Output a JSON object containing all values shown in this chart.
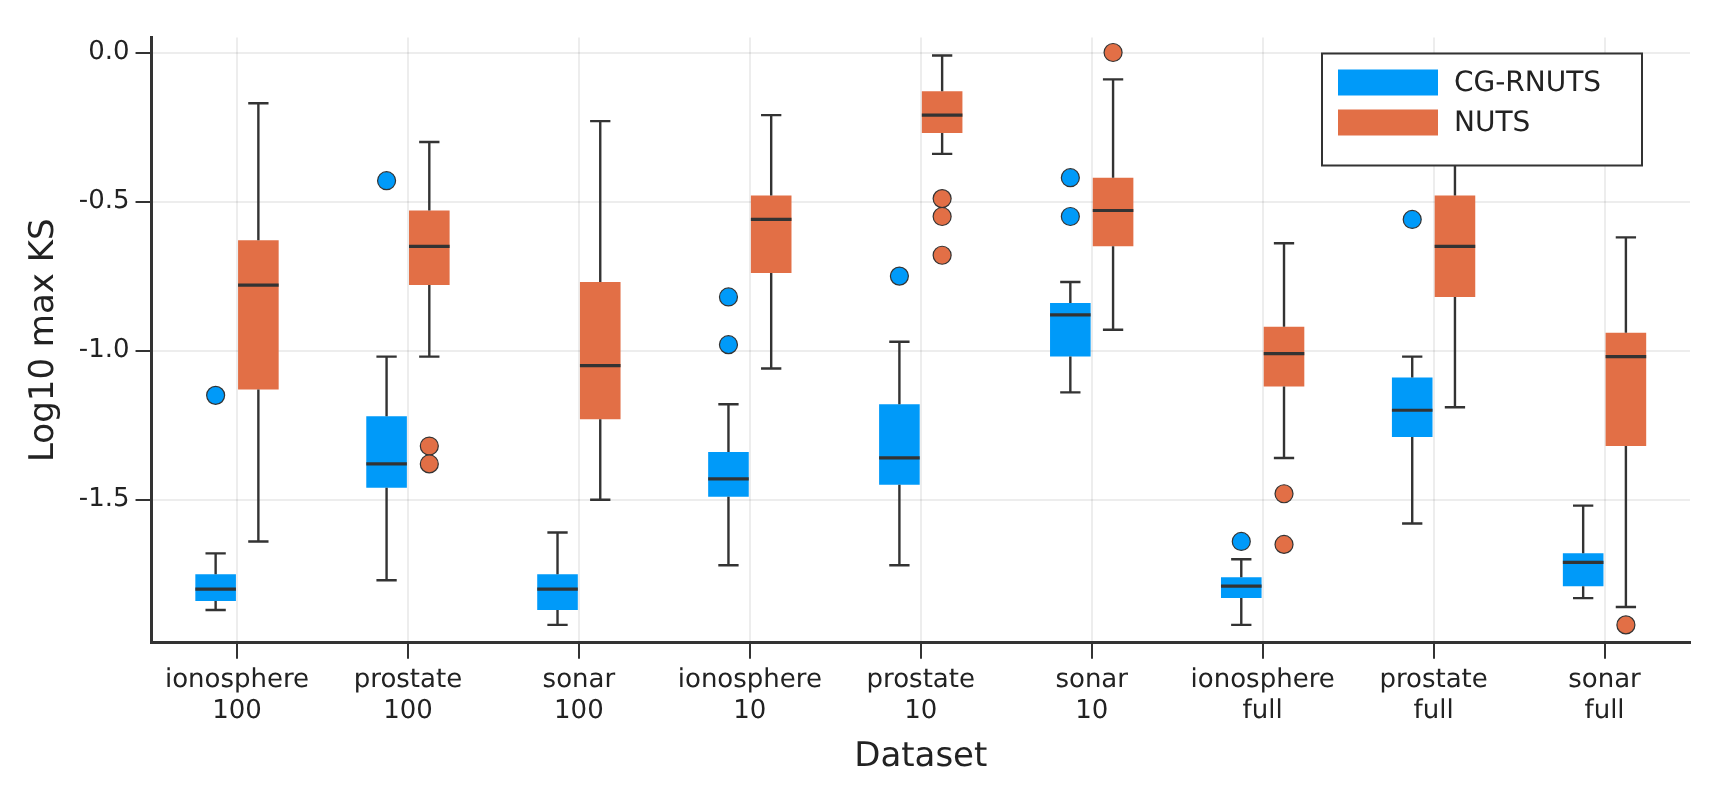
{
  "chart_data": {
    "type": "box",
    "xlabel": "Dataset",
    "ylabel": "Log10 max KS",
    "categories": [
      "ionosphere 100",
      "prostate 100",
      "sonar 100",
      "ionosphere 10",
      "prostate 10",
      "sonar 10",
      "ionosphere full",
      "prostate full",
      "sonar full"
    ],
    "ylim": [
      -1.98,
      0.05
    ],
    "yticks": [
      {
        "value": -1.5,
        "label": "-1.5"
      },
      {
        "value": -1,
        "label": "-1.0"
      },
      {
        "value": -0.5,
        "label": "-0.5"
      },
      {
        "value": 0,
        "label": "0.0"
      }
    ],
    "grid": true,
    "legend": "top right",
    "series": [
      {
        "name": "CG-RNUTS",
        "color": "#009af9",
        "boxes": [
          {
            "low": -1.87,
            "q1": -1.84,
            "median": -1.8,
            "q3": -1.75,
            "high": -1.68,
            "outliers": [
              -1.15
            ]
          },
          {
            "low": -1.77,
            "q1": -1.46,
            "median": -1.38,
            "q3": -1.22,
            "high": -1.02,
            "outliers": [
              -0.43
            ]
          },
          {
            "low": -1.92,
            "q1": -1.87,
            "median": -1.8,
            "q3": -1.75,
            "high": -1.61
          },
          {
            "low": -1.72,
            "q1": -1.49,
            "median": -1.43,
            "q3": -1.34,
            "high": -1.18,
            "outliers": [
              -0.82,
              -0.98
            ]
          },
          {
            "low": -1.72,
            "q1": -1.45,
            "median": -1.36,
            "q3": -1.18,
            "high": -0.97,
            "outliers": [
              -0.75
            ]
          },
          {
            "low": -1.14,
            "q1": -1.02,
            "median": -0.88,
            "q3": -0.84,
            "high": -0.77,
            "outliers": [
              -0.42,
              -0.55
            ]
          },
          {
            "low": -1.92,
            "q1": -1.83,
            "median": -1.79,
            "q3": -1.76,
            "high": -1.7,
            "outliers": [
              -1.64
            ]
          },
          {
            "low": -1.58,
            "q1": -1.29,
            "median": -1.2,
            "q3": -1.09,
            "high": -1.02,
            "outliers": [
              -0.56
            ]
          },
          {
            "low": -1.83,
            "q1": -1.79,
            "median": -1.71,
            "q3": -1.68,
            "high": -1.52
          }
        ]
      },
      {
        "name": "NUTS",
        "color": "#e26f46",
        "boxes": [
          {
            "low": -1.64,
            "q1": -1.13,
            "median": -0.78,
            "q3": -0.63,
            "high": -0.17
          },
          {
            "low": -1.02,
            "q1": -0.78,
            "median": -0.65,
            "q3": -0.53,
            "high": -0.3,
            "outliers": [
              -1.32,
              -1.38
            ]
          },
          {
            "low": -1.5,
            "q1": -1.23,
            "median": -1.05,
            "q3": -0.77,
            "high": -0.23
          },
          {
            "low": -1.06,
            "q1": -0.74,
            "median": -0.56,
            "q3": -0.48,
            "high": -0.21
          },
          {
            "low": -0.34,
            "q1": -0.27,
            "median": -0.21,
            "q3": -0.13,
            "high": -0.01,
            "outliers": [
              -0.49,
              -0.55,
              -0.68
            ]
          },
          {
            "low": -0.93,
            "q1": -0.65,
            "median": -0.53,
            "q3": -0.42,
            "high": -0.09,
            "outliers": [
              0
            ]
          },
          {
            "low": -1.36,
            "q1": -1.12,
            "median": -1.01,
            "q3": -0.92,
            "high": -0.64,
            "outliers": [
              -1.48,
              -1.65
            ]
          },
          {
            "low": -1.19,
            "q1": -0.82,
            "median": -0.65,
            "q3": -0.48,
            "high": -0.3
          },
          {
            "low": -1.86,
            "q1": -1.32,
            "median": -1.02,
            "q3": -0.94,
            "high": -0.62,
            "outliers": [
              -1.92
            ]
          }
        ]
      }
    ]
  }
}
